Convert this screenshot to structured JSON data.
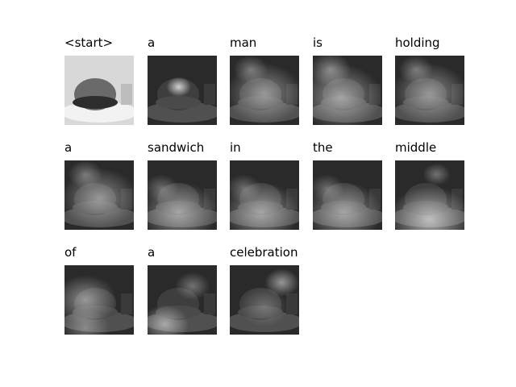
{
  "frames": [
    {
      "word": "<start>",
      "overlay": "none"
    },
    {
      "word": "a",
      "overlay": "spot-center"
    },
    {
      "word": "man",
      "overlay": "broad"
    },
    {
      "word": "is",
      "overlay": "broad-left"
    },
    {
      "word": "holding",
      "overlay": "broad"
    },
    {
      "word": "a",
      "overlay": "broad"
    },
    {
      "word": "sandwich",
      "overlay": "bottom"
    },
    {
      "word": "in",
      "overlay": "bottom"
    },
    {
      "word": "the",
      "overlay": "bottom"
    },
    {
      "word": "middle",
      "overlay": "bottom-strong"
    },
    {
      "word": "of",
      "overlay": "left"
    },
    {
      "word": "a",
      "overlay": "bottom-left"
    },
    {
      "word": "celebration",
      "overlay": "top-right"
    }
  ]
}
